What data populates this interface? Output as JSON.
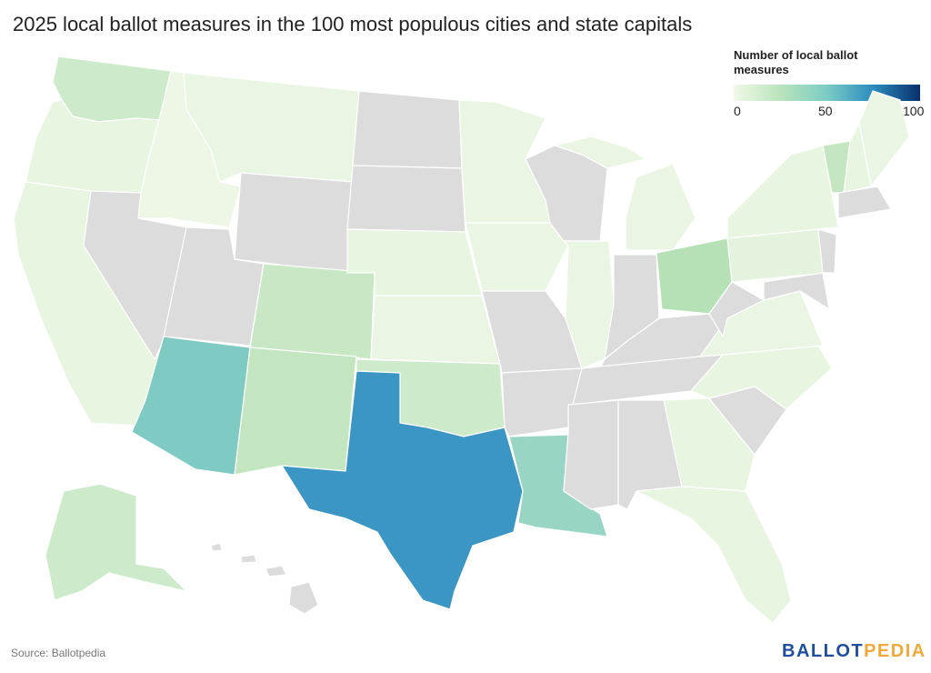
{
  "title": "2025 local ballot measures in the 100 most populous cities and state capitals",
  "legend": {
    "title": "Number of local ballot measures",
    "ticks": [
      "0",
      "50",
      "100"
    ],
    "scale": {
      "min": 0,
      "max": 100
    },
    "colors": [
      "#f0f9e8",
      "#bae4bc",
      "#7bccc4",
      "#2b8cbe",
      "#08306b"
    ]
  },
  "colors": {
    "no_data": "#dcdcdc",
    "background": "#ffffff"
  },
  "source": "Source: Ballotpedia",
  "logo": {
    "part1": "BALLOT",
    "part2": "PEDIA",
    "color1": "#1f4e9c",
    "color2": "#f2a93b"
  },
  "states": {
    "WA": "#cdebcb",
    "OR": "#e8f5e1",
    "CA": "#e8f5e1",
    "ID": "#eef7e6",
    "MT": "#eaf6e3",
    "NV": "#dcdcdc",
    "UT": "#dcdcdc",
    "WY": "#dcdcdc",
    "CO": "#c8e8c5",
    "AZ": "#7fcac2",
    "NM": "#c3e6c1",
    "ND": "#dcdcdc",
    "SD": "#dcdcdc",
    "NE": "#e8f5e1",
    "KS": "#eaf6e3",
    "OK": "#cdebcb",
    "TX": "#3b96c4",
    "MN": "#eaf6e3",
    "IA": "#eaf6e3",
    "MO": "#dcdcdc",
    "AR": "#dcdcdc",
    "LA": "#98d5c4",
    "WI": "#dcdcdc",
    "IL": "#eaf6e3",
    "MI": "#eaf6e3",
    "IN": "#dcdcdc",
    "OH": "#b6e1b6",
    "KY": "#dcdcdc",
    "TN": "#dcdcdc",
    "MS": "#dcdcdc",
    "AL": "#dcdcdc",
    "GA": "#e8f5e1",
    "FL": "#e8f5e1",
    "SC": "#dcdcdc",
    "NC": "#e8f5e1",
    "VA": "#eaf6e3",
    "WV": "#dcdcdc",
    "PA": "#e4f3dd",
    "NY": "#e8f5e1",
    "VT": "#c3e6c1",
    "NH": "#e8f5e1",
    "ME": "#eaf6e3",
    "MA": "#dcdcdc",
    "NJ": "#dcdcdc",
    "MD": "#dcdcdc",
    "AK": "#cdebcb",
    "HI": "#dcdcdc"
  }
}
